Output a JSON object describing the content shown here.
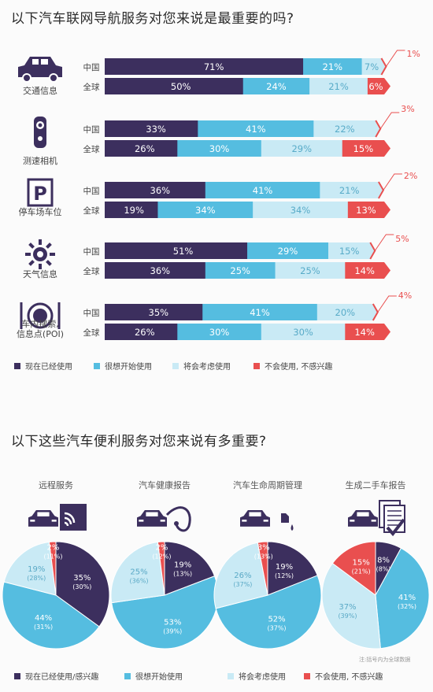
{
  "titles": {
    "nav": "以下汽车联网导航服务对您来说是最重要的吗?",
    "conv": "以下这些汽车便利服务对您来说有多重要?"
  },
  "colors": {
    "dark": "#3c2f5e",
    "mid": "#55bde0",
    "light": "#c9eaf5",
    "red": "#e94f4f"
  },
  "chart_data": [
    {
      "type": "bar",
      "stacked": true,
      "series_names": [
        "现在已经使用",
        "很想开始使用",
        "将会考虑使用",
        "不会使用, 不感兴趣"
      ],
      "groups": [
        {
          "label": "交通信息",
          "icon": "car-icon",
          "rows": [
            {
              "name": "中国",
              "values": [
                71,
                21,
                7,
                1
              ],
              "labels": [
                "71%",
                "21%",
                "7%",
                "1%"
              ]
            },
            {
              "name": "全球",
              "values": [
                50,
                24,
                21,
                6
              ],
              "labels": [
                "50%",
                "24%",
                "21%",
                "6%"
              ]
            }
          ]
        },
        {
          "label": "测速相机",
          "icon": "camera-icon",
          "rows": [
            {
              "name": "中国",
              "values": [
                33,
                41,
                22,
                3
              ],
              "labels": [
                "33%",
                "41%",
                "22%",
                "3%"
              ]
            },
            {
              "name": "全球",
              "values": [
                26,
                30,
                29,
                15
              ],
              "labels": [
                "26%",
                "30%",
                "29%",
                "15%"
              ]
            }
          ]
        },
        {
          "label": "停车场车位",
          "icon": "parking-icon",
          "rows": [
            {
              "name": "中国",
              "values": [
                36,
                41,
                21,
                2
              ],
              "labels": [
                "36%",
                "41%",
                "21%",
                "2%"
              ]
            },
            {
              "name": "全球",
              "values": [
                19,
                34,
                34,
                13
              ],
              "labels": [
                "19%",
                "34%",
                "34%",
                "13%"
              ]
            }
          ]
        },
        {
          "label": "天气信息",
          "icon": "sun-icon",
          "rows": [
            {
              "name": "中国",
              "values": [
                51,
                29,
                15,
                5
              ],
              "labels": [
                "51%",
                "29%",
                "15%",
                "5%"
              ]
            },
            {
              "name": "全球",
              "values": [
                36,
                25,
                25,
                14
              ],
              "labels": [
                "36%",
                "25%",
                "25%",
                "14%"
              ]
            }
          ]
        },
        {
          "label": "车内搜索,\n信息点(POI)",
          "icon": "dining-icon",
          "rows": [
            {
              "name": "中国",
              "values": [
                35,
                41,
                20,
                4
              ],
              "labels": [
                "35%",
                "41%",
                "20%",
                "4%"
              ]
            },
            {
              "name": "全球",
              "values": [
                26,
                30,
                30,
                14
              ],
              "labels": [
                "26%",
                "30%",
                "30%",
                "14%"
              ]
            }
          ]
        }
      ]
    },
    {
      "type": "pie",
      "series_names": [
        "现在已经使用/感兴趣",
        "很想开始使用",
        "将会考虑使用",
        "不会使用, 不感兴趣"
      ],
      "note": "注:括号内为全球数据",
      "pies": [
        {
          "title": "远程服务",
          "icon": "remote-service-icon",
          "values": [
            35,
            44,
            19,
            2
          ],
          "global_values": [
            30,
            31,
            28,
            11
          ],
          "labels": [
            "35%",
            "44%",
            "19%",
            "2%"
          ],
          "global_labels": [
            "(30%)",
            "(31%)",
            "(28%)",
            "(11%)"
          ]
        },
        {
          "title": "汽车健康报告",
          "icon": "health-report-icon",
          "values": [
            19,
            53,
            25,
            2
          ],
          "global_values": [
            13,
            39,
            36,
            12
          ],
          "labels": [
            "19%",
            "53%",
            "25%",
            "2%"
          ],
          "global_labels": [
            "(13%)",
            "(39%)",
            "(36%)",
            "(12%)"
          ]
        },
        {
          "title": "汽车生命周期管理",
          "icon": "lifecycle-icon",
          "values": [
            19,
            52,
            26,
            3
          ],
          "global_values": [
            12,
            37,
            37,
            13
          ],
          "labels": [
            "19%",
            "52%",
            "26%",
            "3%"
          ],
          "global_labels": [
            "(12%)",
            "(37%)",
            "(37%)",
            "(13%)"
          ]
        },
        {
          "title": "生成二手车报告",
          "icon": "used-car-report-icon",
          "values": [
            8,
            41,
            37,
            15
          ],
          "global_values": [
            8,
            32,
            39,
            21
          ],
          "labels": [
            "8%",
            "41%",
            "37%",
            "15%"
          ],
          "global_labels": [
            "(8%)",
            "(32%)",
            "(39%)",
            "(21%)"
          ]
        }
      ]
    }
  ]
}
